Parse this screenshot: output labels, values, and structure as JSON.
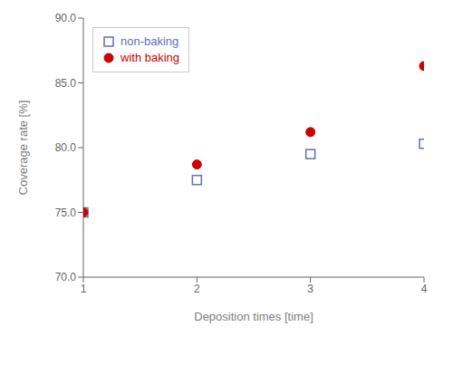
{
  "chart_data": {
    "type": "scatter",
    "x": [
      1,
      2,
      3,
      4
    ],
    "series": [
      {
        "name": "non-baking",
        "color": "#6070b8",
        "marker": "square",
        "values": [
          75.0,
          77.5,
          79.5,
          80.3
        ]
      },
      {
        "name": "with baking",
        "color": "#cc0000",
        "marker": "circle",
        "values": [
          75.0,
          78.7,
          81.2,
          86.3
        ]
      }
    ],
    "xlabel": "Deposition times [time]",
    "ylabel": "Coverage rate [%]",
    "xlim": [
      1.0,
      4.0
    ],
    "ylim": [
      70.0,
      90.0
    ],
    "xticks": [
      1,
      2,
      3,
      4
    ],
    "yticks": [
      {
        "value": 70.0,
        "label": "70.0"
      },
      {
        "value": 75.0,
        "label": "75.0"
      },
      {
        "value": 80.0,
        "label": "80.0"
      },
      {
        "value": 85.0,
        "label": "85.0"
      },
      {
        "value": 90.0,
        "label": "90.0"
      }
    ],
    "legend": "upper left",
    "grid": false
  }
}
